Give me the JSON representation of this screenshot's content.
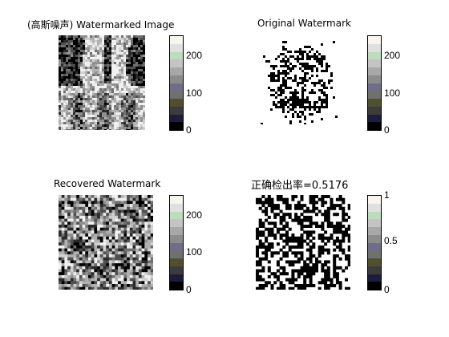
{
  "panels": {
    "watermarked": {
      "title": "(高斯噪声) Watermarked Image",
      "ticks": [
        "0",
        "100",
        "200"
      ]
    },
    "original": {
      "title": "Original Watermark",
      "ticks": [
        "0",
        "100",
        "200"
      ]
    },
    "recovered": {
      "title": "Recovered Watermark",
      "ticks": [
        "0",
        "100",
        "200"
      ]
    },
    "accuracy": {
      "title": "正确检出率=0.5176",
      "ticks": [
        "0",
        "0.5",
        "1"
      ]
    }
  },
  "colormap": [
    "#000000",
    "#1c1d3a",
    "#3c3c3c",
    "#505030",
    "#707070",
    "#6e6e8a",
    "#8c8c8c",
    "#a8a8a8",
    "#c4c4c4",
    "#bcdcbc",
    "#e0e0e0",
    "#f6f6ec"
  ]
}
